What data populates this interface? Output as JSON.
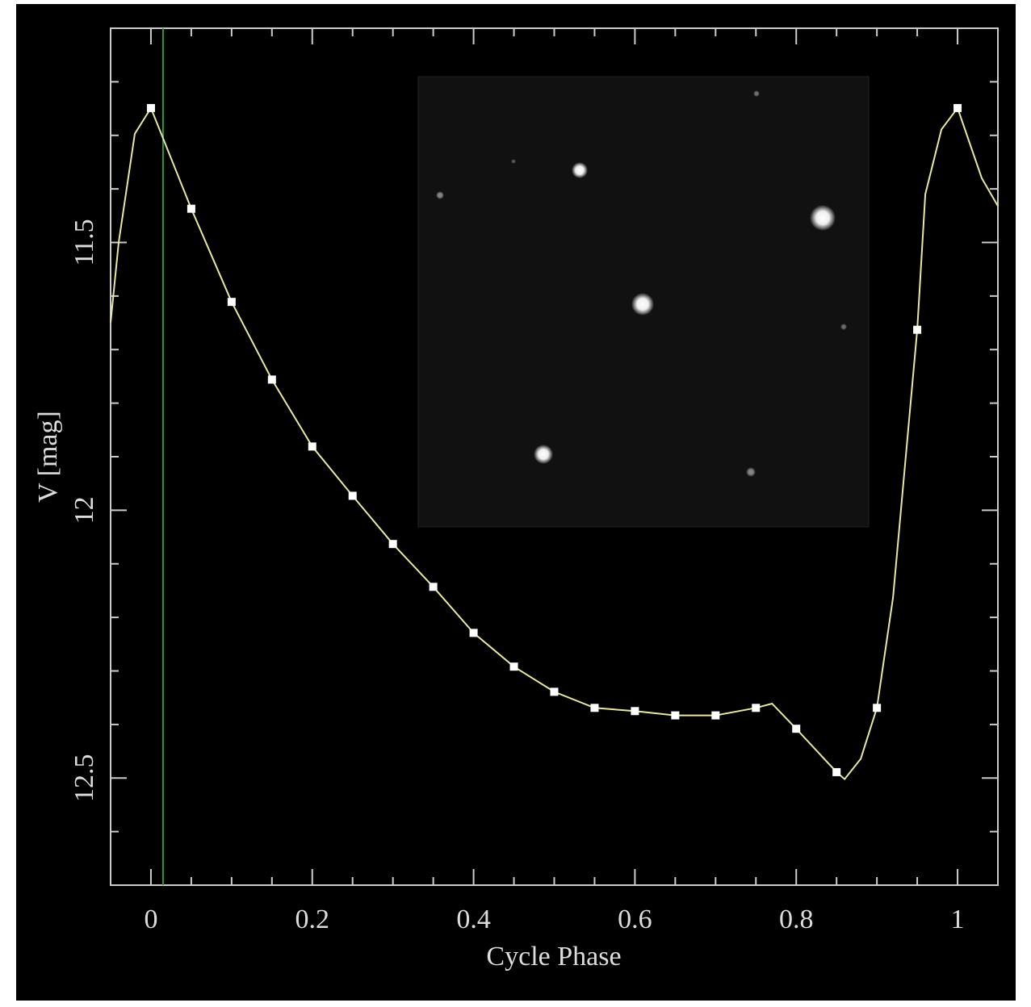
{
  "chart_data": {
    "type": "scatter",
    "xlabel": "Cycle Phase",
    "ylabel": "V [mag]",
    "xlim": [
      -0.05,
      1.05
    ],
    "ylim": [
      11.1,
      12.7
    ],
    "y_inverted": true,
    "xticks": [
      0,
      0.2,
      0.4,
      0.6,
      0.8,
      1
    ],
    "xminor_ticks": [
      0.05,
      0.1,
      0.15,
      0.25,
      0.3,
      0.35,
      0.45,
      0.5,
      0.55,
      0.65,
      0.7,
      0.75,
      0.85,
      0.9,
      0.95
    ],
    "yticks": [
      11.5,
      12,
      12.5
    ],
    "yminor_ticks": [
      11.2,
      11.3,
      11.4,
      11.6,
      11.7,
      11.8,
      11.9,
      12.1,
      12.2,
      12.3,
      12.4,
      12.6
    ],
    "vline": {
      "x": 0.015,
      "color": "#2e9a2e"
    },
    "series": [
      {
        "mode": "line",
        "color": "#e8e8a0",
        "x": [
          -0.05,
          -0.04,
          -0.02,
          0,
          0.05,
          0.1,
          0.15,
          0.2,
          0.25,
          0.3,
          0.35,
          0.4,
          0.45,
          0.5,
          0.55,
          0.6,
          0.65,
          0.7,
          0.75,
          0.77,
          0.8,
          0.85,
          0.86,
          0.88,
          0.9,
          0.92,
          0.95,
          0.96,
          0.98,
          1,
          1.03,
          1.05
        ],
        "values": [
          11.65,
          11.5,
          11.297,
          11.249,
          11.437,
          11.611,
          11.756,
          11.881,
          11.973,
          12.063,
          12.143,
          12.229,
          12.292,
          12.339,
          12.369,
          12.375,
          12.383,
          12.383,
          12.369,
          12.361,
          12.408,
          12.489,
          12.502,
          12.464,
          12.369,
          12.163,
          11.663,
          11.41,
          11.289,
          11.249,
          11.38,
          11.432
        ]
      },
      {
        "mode": "markers",
        "color": "#ffffff",
        "x": [
          0,
          0.05,
          0.1,
          0.15,
          0.2,
          0.25,
          0.3,
          0.35,
          0.4,
          0.45,
          0.5,
          0.55,
          0.6,
          0.65,
          0.7,
          0.75,
          0.8,
          0.85,
          0.9,
          0.95,
          1
        ],
        "values": [
          11.249,
          11.437,
          11.611,
          11.756,
          11.881,
          11.973,
          12.063,
          12.143,
          12.229,
          12.292,
          12.339,
          12.369,
          12.375,
          12.383,
          12.383,
          12.369,
          12.408,
          12.489,
          12.369,
          11.663,
          11.249
        ]
      }
    ]
  }
}
